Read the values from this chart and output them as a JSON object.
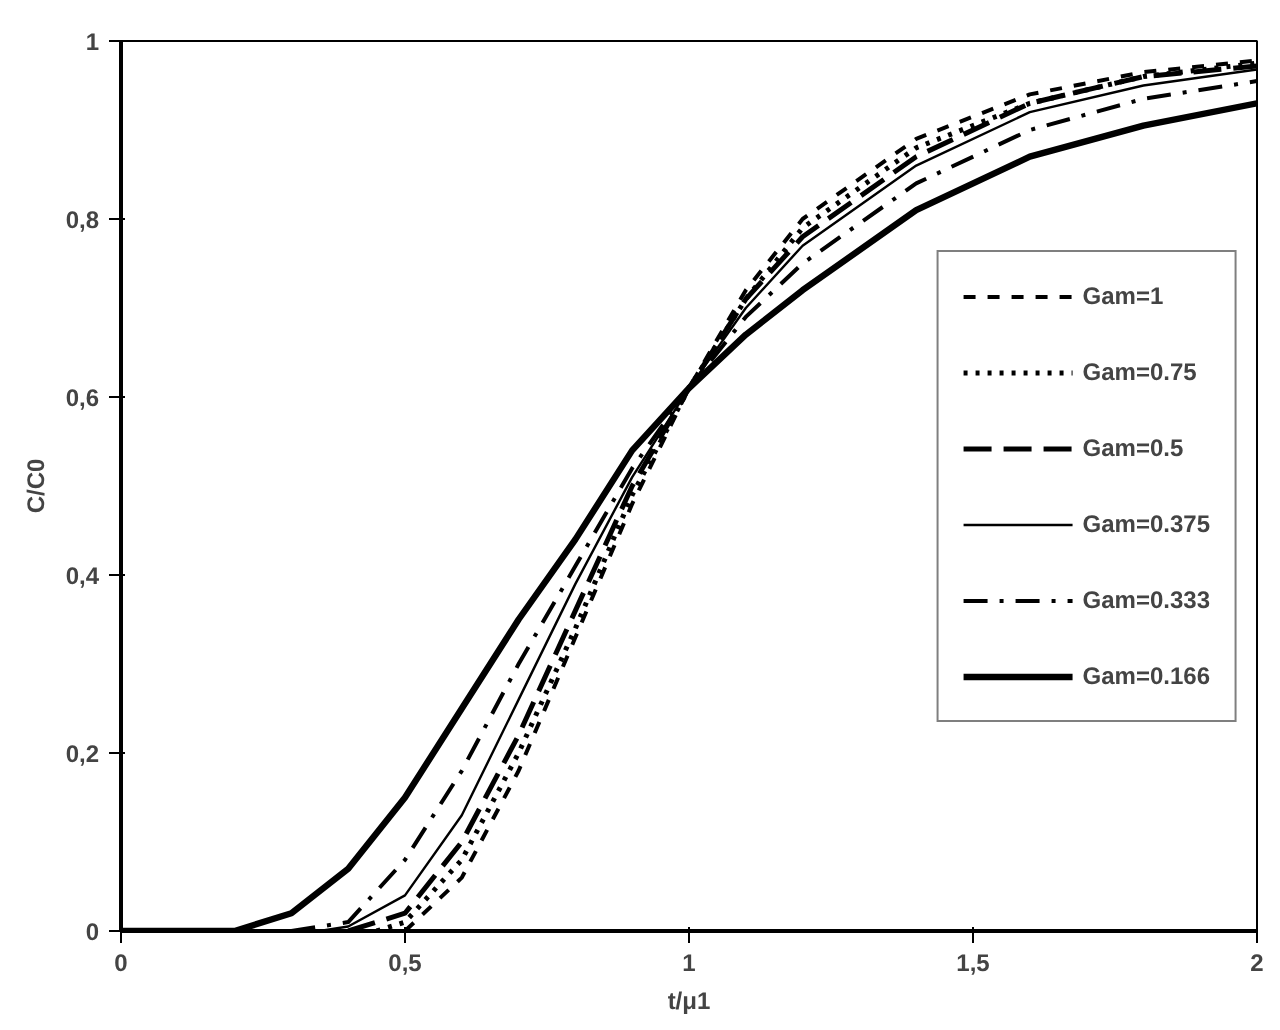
{
  "chart_data": {
    "type": "line",
    "xlabel": "t/μ1",
    "ylabel": "C/C0",
    "x": [
      0,
      0.2,
      0.3,
      0.4,
      0.5,
      0.6,
      0.7,
      0.8,
      0.9,
      1.0,
      1.1,
      1.2,
      1.4,
      1.6,
      1.8,
      2.0
    ],
    "series": [
      {
        "name": "Gam=1",
        "color": "#000000",
        "line_style": "dashed",
        "x": [
          0.5,
          0.6,
          0.7,
          0.8,
          0.9,
          1.0,
          1.1,
          1.2,
          1.4,
          1.6,
          1.8,
          2.0
        ],
        "values": [
          0,
          0.06,
          0.18,
          0.33,
          0.48,
          0.61,
          0.72,
          0.8,
          0.89,
          0.94,
          0.965,
          0.978
        ]
      },
      {
        "name": "Gam=0.75",
        "color": "#000000",
        "line_style": "dotted",
        "x": [
          0.45,
          0.5,
          0.6,
          0.7,
          0.8,
          0.9,
          1.0,
          1.1,
          1.2,
          1.4,
          1.6,
          1.8,
          2.0
        ],
        "values": [
          0,
          0.01,
          0.08,
          0.2,
          0.34,
          0.49,
          0.61,
          0.71,
          0.79,
          0.88,
          0.93,
          0.96,
          0.975
        ]
      },
      {
        "name": "Gam=0.5",
        "color": "#000000",
        "line_style": "dashed",
        "x": [
          0.4,
          0.5,
          0.6,
          0.7,
          0.8,
          0.9,
          1.0,
          1.1,
          1.2,
          1.4,
          1.6,
          1.8,
          2.0
        ],
        "values": [
          0,
          0.02,
          0.1,
          0.22,
          0.36,
          0.5,
          0.61,
          0.71,
          0.78,
          0.87,
          0.93,
          0.96,
          0.972
        ]
      },
      {
        "name": "Gam=0.375",
        "color": "#000000",
        "line_style": "solid",
        "x": [
          0.35,
          0.4,
          0.5,
          0.6,
          0.7,
          0.8,
          0.9,
          1.0,
          1.1,
          1.2,
          1.4,
          1.6,
          1.8,
          2.0
        ],
        "values": [
          0,
          0.005,
          0.04,
          0.13,
          0.26,
          0.39,
          0.51,
          0.61,
          0.7,
          0.77,
          0.86,
          0.92,
          0.95,
          0.968
        ]
      },
      {
        "name": "Gam=0.333",
        "color": "#000000",
        "line_style": "dashed",
        "x": [
          0.3,
          0.4,
          0.5,
          0.6,
          0.7,
          0.8,
          0.9,
          1.0,
          1.1,
          1.2,
          1.4,
          1.6,
          1.8,
          2.0
        ],
        "values": [
          0,
          0.01,
          0.08,
          0.18,
          0.3,
          0.41,
          0.52,
          0.61,
          0.69,
          0.75,
          0.84,
          0.9,
          0.935,
          0.955
        ]
      },
      {
        "name": "Gam=0.166",
        "color": "#000000",
        "line_style": "solid",
        "values": [
          0,
          0,
          0.02,
          0.07,
          0.15,
          0.25,
          0.35,
          0.44,
          0.54,
          0.61,
          0.67,
          0.72,
          0.81,
          0.87,
          0.905,
          0.93
        ]
      }
    ],
    "xlim": [
      0,
      2
    ],
    "ylim": [
      0,
      1
    ],
    "xticks": [
      0,
      {
        "value": 0.5,
        "label": "0,5"
      },
      1,
      {
        "value": 1.5,
        "label": "1,5"
      },
      2
    ],
    "yticks": [
      0,
      {
        "value": 0.2,
        "label": "0,2"
      },
      {
        "value": 0.4,
        "label": "0,4"
      },
      {
        "value": 0.6,
        "label": "0,6"
      },
      {
        "value": 0.8,
        "label": "0,8"
      },
      1
    ],
    "grid": false,
    "legend": "right",
    "marker": "none"
  }
}
